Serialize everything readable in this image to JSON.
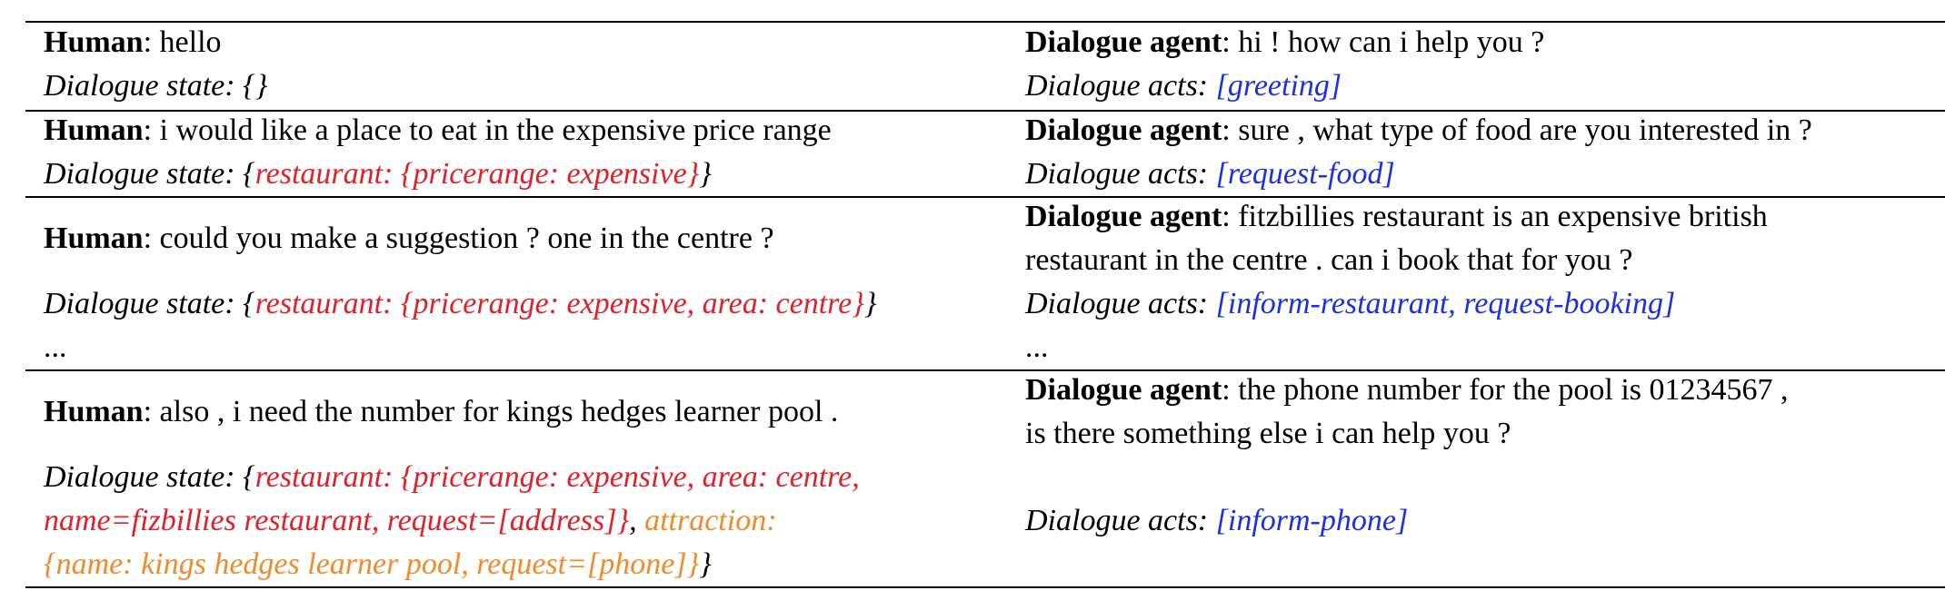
{
  "labels": {
    "human": "Human",
    "agent": "Dialogue agent",
    "state": "Dialogue state: ",
    "acts": "Dialogue acts: ",
    "colon": ": "
  },
  "colors": {
    "state": "#e0202a",
    "state_secondary": "#ef8b2b",
    "acts": "#1a2fe6"
  },
  "turns": [
    {
      "human": "hello",
      "state_open": "{",
      "state_red": "",
      "state_close": "}",
      "agent_line1": "hi ! how can i help you ?",
      "acts": "[greeting]"
    },
    {
      "human": "i would like a place to eat in the expensive price range",
      "state_open": "{",
      "state_red": "restaurant: {pricerange: expensive}",
      "state_close": "}",
      "agent_line1": "sure , what type of food are you interested in ?",
      "acts": "[request-food]"
    },
    {
      "human": "could you make a suggestion ? one in the centre ?",
      "state_open": "{",
      "state_red": "restaurant: {pricerange: expensive, area: centre}",
      "state_close": "}",
      "agent_line1": "fitzbillies restaurant is an expensive british",
      "agent_line2": "restaurant in the centre . can i book that for you ?",
      "acts": "[inform-restaurant, request-booking]",
      "ellipsis": "..."
    },
    {
      "human": "also , i need the number for kings hedges learner pool .",
      "state_open": "{",
      "state_red_1": "restaurant: {pricerange: expensive, area: centre,",
      "state_red_2": "name=fizbillies restaurant, request=[address]}",
      "state_sep": ", ",
      "state_orange_1": "attraction:",
      "state_orange_2": "{name: kings hedges learner pool, request=[phone]}",
      "state_close": "}",
      "agent_line1": "the phone number for the pool is 01234567 ,",
      "agent_line2": "is there something else i can help you ?",
      "acts": "[inform-phone]"
    }
  ]
}
